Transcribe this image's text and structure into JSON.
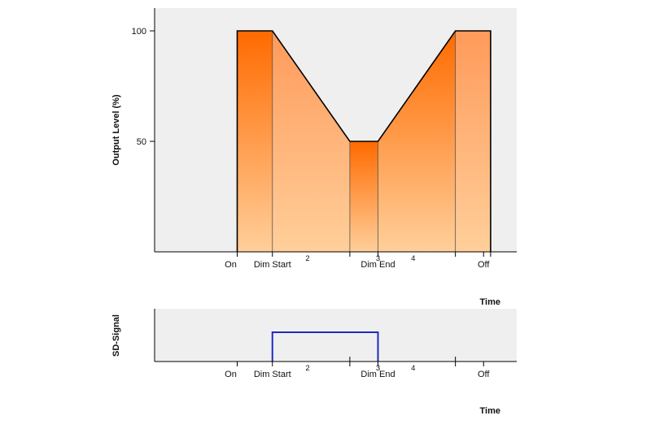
{
  "chart_data": [
    {
      "type": "area",
      "ylabel": "Output Level (%)",
      "xlabel": "Time",
      "ylim": [
        0,
        100
      ],
      "yticks": [
        50,
        100
      ],
      "x_markers": [
        {
          "label": "On",
          "x": 2
        },
        {
          "label": "Dim Start",
          "x": 3
        },
        {
          "label": "Dim End",
          "x": 6
        },
        {
          "label": "Off",
          "x": 9
        }
      ],
      "phase_labels": [
        {
          "label": "2",
          "x": 4
        },
        {
          "label": "3",
          "x": 6
        },
        {
          "label": "4",
          "x": 7
        }
      ],
      "segment_dividers": [
        2,
        3,
        5.2,
        6,
        8.2,
        9.2
      ],
      "series": [
        {
          "points": [
            {
              "x": 2,
              "y": 0
            },
            {
              "x": 2,
              "y": 100
            },
            {
              "x": 3,
              "y": 100
            },
            {
              "x": 5.2,
              "y": 50
            },
            {
              "x": 6,
              "y": 50
            },
            {
              "x": 8.2,
              "y": 100
            },
            {
              "x": 9.2,
              "y": 100
            },
            {
              "x": 9.2,
              "y": 0
            }
          ]
        }
      ],
      "colors": {
        "fill_dark": "#ff6a00",
        "fill_light": "#ffcf9a",
        "line": "#000000",
        "background": "#efefef"
      }
    },
    {
      "type": "line",
      "ylabel": "SD-Signal",
      "xlabel": "Time",
      "x_markers": [
        {
          "label": "On",
          "x": 2
        },
        {
          "label": "Dim Start",
          "x": 3
        },
        {
          "label": "Dim End",
          "x": 6
        },
        {
          "label": "Off",
          "x": 9
        }
      ],
      "phase_labels": [
        {
          "label": "2",
          "x": 4
        },
        {
          "label": "3",
          "x": 6
        },
        {
          "label": "4",
          "x": 7
        }
      ],
      "segment_dividers": [
        5.2,
        8.2
      ],
      "series": [
        {
          "points": [
            {
              "x": 3,
              "y": 0
            },
            {
              "x": 3,
              "y": 1
            },
            {
              "x": 6,
              "y": 1
            },
            {
              "x": 6,
              "y": 0
            }
          ]
        }
      ],
      "colors": {
        "line": "#1f2bbf",
        "background": "#efefef"
      }
    }
  ]
}
